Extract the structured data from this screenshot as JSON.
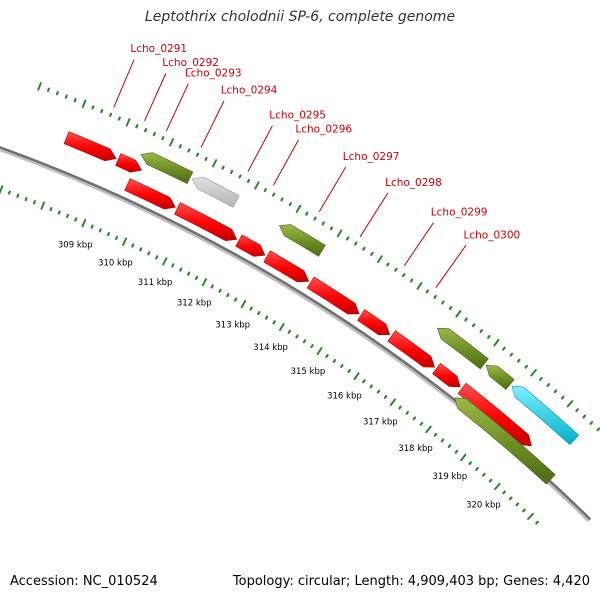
{
  "header": {
    "title": "Leptothrix cholodnii SP-6, complete genome"
  },
  "footer": {
    "accession": "Accession: NC_010524",
    "summary": "Topology: circular; Length: 4,909,403 bp; Genes: 4,420"
  },
  "colors": {
    "forward_gene": "#ff0000",
    "reverse_gene": "#6b8e23",
    "grey_feature": "#c8c8c8",
    "cyan_feature": "#00c8d8",
    "tick": "#2a8a2a",
    "backbone": "#777777",
    "gene_label": "#cc0000"
  },
  "scale": {
    "unit": "kbp",
    "ticks": [
      {
        "pos": 309,
        "label": "309 kbp"
      },
      {
        "pos": 310,
        "label": "310 kbp"
      },
      {
        "pos": 311,
        "label": "311 kbp"
      },
      {
        "pos": 312,
        "label": "312 kbp"
      },
      {
        "pos": 313,
        "label": "313 kbp"
      },
      {
        "pos": 314,
        "label": "314 kbp"
      },
      {
        "pos": 315,
        "label": "315 kbp"
      },
      {
        "pos": 316,
        "label": "316 kbp"
      },
      {
        "pos": 317,
        "label": "317 kbp"
      },
      {
        "pos": 318,
        "label": "318 kbp"
      },
      {
        "pos": 319,
        "label": "319 kbp"
      },
      {
        "pos": 320,
        "label": "320 kbp"
      }
    ]
  },
  "gene_labels": [
    {
      "name": "Lcho_0291",
      "at": 308.6
    },
    {
      "name": "Lcho_0292",
      "at": 309.3
    },
    {
      "name": "Lcho_0293",
      "at": 309.8
    },
    {
      "name": "Lcho_0294",
      "at": 310.6
    },
    {
      "name": "Lcho_0295",
      "at": 311.7
    },
    {
      "name": "Lcho_0296",
      "at": 312.3
    },
    {
      "name": "Lcho_0297",
      "at": 313.4
    },
    {
      "name": "Lcho_0298",
      "at": 314.4
    },
    {
      "name": "Lcho_0299",
      "at": 315.5
    },
    {
      "name": "Lcho_0300",
      "at": 316.3
    }
  ],
  "tracks": {
    "outer_reverse": [
      {
        "start": 309.5,
        "end": 310.7,
        "type": "reverse"
      },
      {
        "start": 310.7,
        "end": 311.8,
        "type": "grey"
      },
      {
        "start": 312.8,
        "end": 313.9,
        "type": "reverse"
      },
      {
        "start": 316.8,
        "end": 318.1,
        "type": "reverse"
      },
      {
        "start": 318.1,
        "end": 318.8,
        "type": "reverse"
      },
      {
        "start": 318.8,
        "end": 320.6,
        "type": "cyan"
      }
    ],
    "forward_row1": [
      {
        "start": 307.9,
        "end": 309.1,
        "type": "forward"
      },
      {
        "start": 309.1,
        "end": 309.7,
        "type": "forward"
      }
    ],
    "forward_row2": [
      {
        "start": 309.5,
        "end": 310.7,
        "type": "forward"
      },
      {
        "start": 310.7,
        "end": 312.2,
        "type": "forward"
      },
      {
        "start": 312.2,
        "end": 312.9,
        "type": "forward"
      },
      {
        "start": 312.9,
        "end": 314.0,
        "type": "forward"
      },
      {
        "start": 314.0,
        "end": 315.3,
        "type": "forward"
      },
      {
        "start": 315.3,
        "end": 316.1,
        "type": "forward"
      },
      {
        "start": 316.1,
        "end": 317.3,
        "type": "forward"
      },
      {
        "start": 317.3,
        "end": 318.0,
        "type": "forward"
      },
      {
        "start": 318.0,
        "end": 320.0,
        "type": "forward"
      }
    ],
    "inner_reverse": [
      {
        "start": 318.0,
        "end": 320.8,
        "type": "reverse"
      }
    ]
  }
}
